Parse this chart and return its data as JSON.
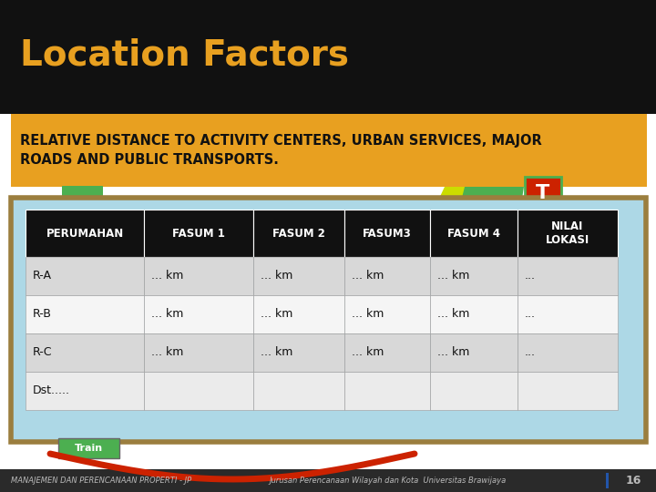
{
  "title": "Location Factors",
  "title_color": "#E8A020",
  "bg_color": "#111111",
  "subtitle_bg": "#E8A020",
  "subtitle_text": "RELATIVE DISTANCE TO ACTIVITY CENTERS, URBAN SERVICES, MAJOR\nROADS AND PUBLIC TRANSPORTS.",
  "subtitle_text_color": "#111111",
  "table_outer_bg": "#ADD8E6",
  "table_border": "#9B7E3E",
  "header_bg": "#111111",
  "header_text_color": "#FFFFFF",
  "headers": [
    "PERUMAHAN",
    "FASUM 1",
    "FASUM 2",
    "FASUM3",
    "FASUM 4",
    "NILAI\nLOKASI"
  ],
  "rows": [
    [
      "R-A",
      "... km",
      "... km",
      "... km",
      "... km",
      "..."
    ],
    [
      "R-B",
      "... km",
      "... km",
      "... km",
      "... km",
      "..."
    ],
    [
      "R-C",
      "... km",
      "... km",
      "... km",
      "... km",
      "..."
    ],
    [
      "Dst.....",
      "",
      "",
      "",
      "",
      ""
    ]
  ],
  "row_colors": [
    "#D8D8D8",
    "#F5F5F5",
    "#D8D8D8",
    "#EBEBEB"
  ],
  "footer_left": "MANAJEMEN DAN PERENCANAAN PROPERTI - JP",
  "footer_right": "Jurusan Perencanaan Wilayah dan Kota  Universitas Brawijaya",
  "footer_page": "16",
  "footer_color": "#BBBBBB",
  "footer_bar_color": "#2255AA",
  "green_color": "#4CAF50",
  "yellow_color": "#CCDD00",
  "red_box_color": "#CC2200",
  "train_label_bg": "#4CAF50",
  "train_label_color": "#FFFFFF",
  "red_line_color": "#CC2200",
  "white_bg": "#FFFFFF"
}
